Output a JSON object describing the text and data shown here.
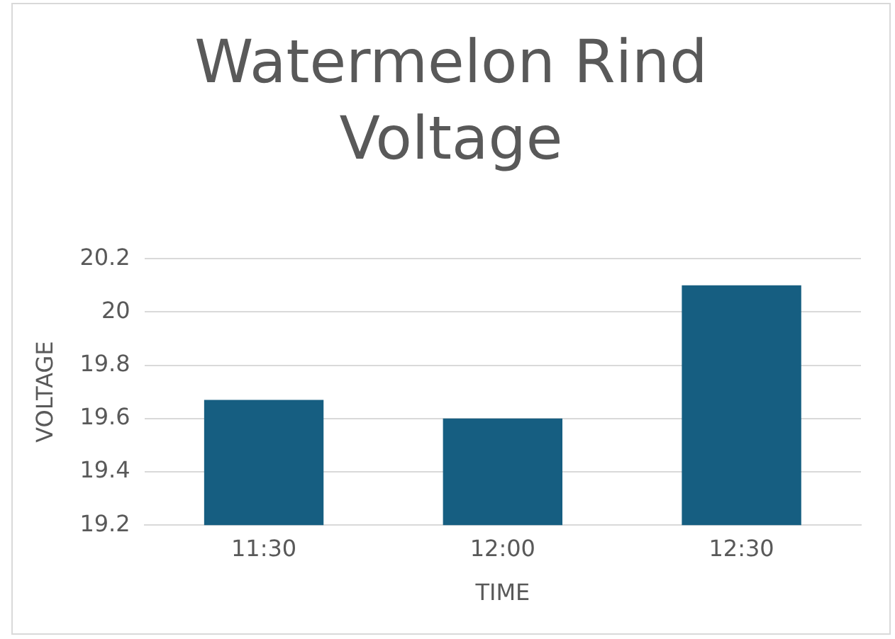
{
  "chart_data": {
    "type": "bar",
    "title": "Watermelon Rind Voltage",
    "xlabel": "TIME",
    "ylabel": "VOLTAGE",
    "categories": [
      "11:30",
      "12:00",
      "12:30"
    ],
    "values": [
      19.67,
      19.6,
      20.1
    ],
    "color": "#165e81",
    "ylim": [
      19.2,
      20.2
    ],
    "yticks": [
      19.2,
      19.4,
      19.6,
      19.8,
      20,
      20.2
    ],
    "grid": "y",
    "legend": false
  }
}
